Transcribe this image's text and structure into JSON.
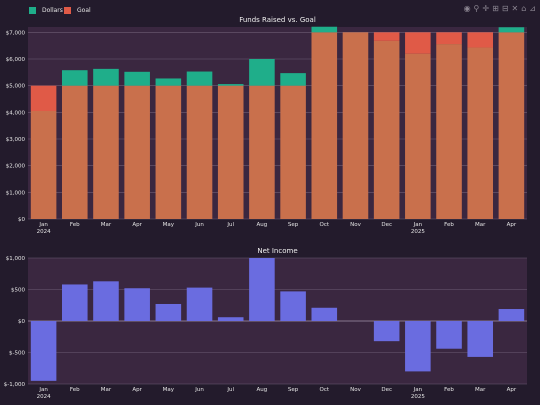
{
  "legend": {
    "items": [
      {
        "label": "Dollars",
        "color": "#1fae8a"
      },
      {
        "label": "Goal",
        "color": "#e05a47"
      }
    ]
  },
  "modebar": {
    "icons": [
      "camera-icon",
      "zoom-icon",
      "pan-icon",
      "zoom-in-icon",
      "zoom-out-icon",
      "autoscale-icon",
      "home-icon",
      "plotly-logo-icon"
    ],
    "glyphs": [
      "◉",
      "⚲",
      "✛",
      "⊞",
      "⊟",
      "✕",
      "⌂",
      "⊿"
    ]
  },
  "chart_data": [
    {
      "type": "bar",
      "title": "Funds Raised vs. Goal",
      "categories": [
        "Jan\n2024",
        "Feb",
        "Mar",
        "Apr",
        "May",
        "Jun",
        "Jul",
        "Aug",
        "Sep",
        "Oct",
        "Nov",
        "Dec",
        "Jan\n2025",
        "Feb",
        "Mar",
        "Apr"
      ],
      "series": [
        {
          "name": "Dollars",
          "color": "#1fae8a",
          "values": [
            4050,
            5580,
            5630,
            5520,
            5270,
            5530,
            5060,
            6000,
            5470,
            7210,
            7000,
            6680,
            6200,
            6560,
            6430,
            7190
          ]
        },
        {
          "name": "Goal",
          "color": "#e05a47",
          "values": [
            5000,
            5000,
            5000,
            5000,
            5000,
            5000,
            5000,
            5000,
            5000,
            7000,
            7000,
            7000,
            7000,
            7000,
            7000,
            7000
          ]
        }
      ],
      "overlap_color": "#c9704c",
      "ylim": [
        0,
        7200
      ],
      "yticks": [
        0,
        1000,
        2000,
        3000,
        4000,
        5000,
        6000,
        7000
      ],
      "ytick_labels": [
        "$0",
        "$1,000",
        "$2,000",
        "$3,000",
        "$4,000",
        "$5,000",
        "$6,000",
        "$7,000"
      ],
      "grid": true
    },
    {
      "type": "bar",
      "title": "Net Income",
      "categories": [
        "Jan\n2024",
        "Feb",
        "Mar",
        "Apr",
        "May",
        "Jun",
        "Jul",
        "Aug",
        "Sep",
        "Oct",
        "Nov",
        "Dec",
        "Jan\n2025",
        "Feb",
        "Mar",
        "Apr"
      ],
      "series": [
        {
          "name": "Net Income",
          "color": "#6a6ce0",
          "values": [
            -950,
            580,
            630,
            520,
            270,
            530,
            60,
            1000,
            470,
            210,
            0,
            -320,
            -800,
            -440,
            -570,
            190
          ]
        }
      ],
      "ylim": [
        -1000,
        1000
      ],
      "yticks": [
        -1000,
        -500,
        0,
        500,
        1000
      ],
      "ytick_labels": [
        "$-1,000",
        "$-500",
        "$0",
        "$500",
        "$1,000"
      ],
      "grid": true
    }
  ]
}
